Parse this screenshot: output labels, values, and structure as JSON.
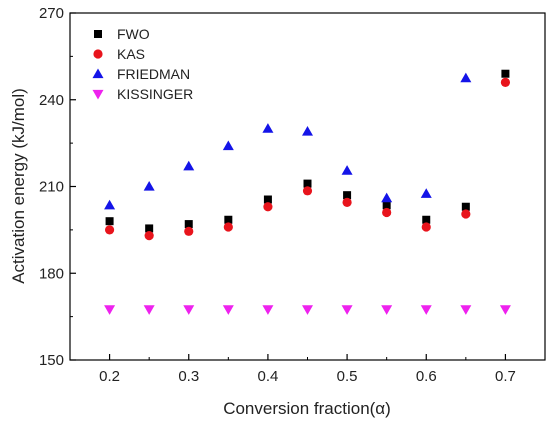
{
  "chart_data": {
    "type": "scatter",
    "xlabel": "Conversion fraction(α)",
    "ylabel": "Activation energy (kJ/mol)",
    "xlim": [
      0.15,
      0.75
    ],
    "ylim": [
      150,
      270
    ],
    "xticks": [
      0.2,
      0.3,
      0.4,
      0.5,
      0.6,
      0.7
    ],
    "xtick_labels": [
      "0.2",
      "0.3",
      "0.4",
      "0.5",
      "0.6",
      "0.7"
    ],
    "yticks": [
      150,
      180,
      210,
      240,
      270
    ],
    "ytick_labels": [
      "150",
      "180",
      "210",
      "240",
      "270"
    ],
    "grid": false,
    "legend_position": "top-left",
    "x": [
      0.2,
      0.25,
      0.3,
      0.35,
      0.4,
      0.45,
      0.5,
      0.55,
      0.6,
      0.65,
      0.7
    ],
    "series": [
      {
        "name": "FWO",
        "marker": "square",
        "color": "#000000",
        "x": [
          0.2,
          0.25,
          0.3,
          0.35,
          0.4,
          0.45,
          0.5,
          0.55,
          0.6,
          0.65,
          0.7
        ],
        "values": [
          198,
          195.5,
          197,
          198.5,
          205.5,
          211,
          207,
          203.5,
          198.5,
          203,
          249
        ]
      },
      {
        "name": "KAS",
        "marker": "circle",
        "color": "#e8141c",
        "x": [
          0.2,
          0.25,
          0.3,
          0.35,
          0.4,
          0.45,
          0.5,
          0.55,
          0.6,
          0.65,
          0.7
        ],
        "values": [
          195,
          193,
          194.5,
          196,
          203,
          208.5,
          204.5,
          201,
          196,
          200.5,
          246
        ]
      },
      {
        "name": "FRIEDMAN",
        "marker": "triangle-up",
        "color": "#1414e8",
        "x": [
          0.2,
          0.25,
          0.3,
          0.35,
          0.4,
          0.45,
          0.5,
          0.55,
          0.6,
          0.65
        ],
        "values": [
          203.5,
          210,
          217,
          224,
          230,
          229,
          215.5,
          206,
          207.5,
          247.5
        ]
      },
      {
        "name": "KISSINGER",
        "marker": "triangle-down",
        "color": "#ee22ee",
        "x": [
          0.2,
          0.25,
          0.3,
          0.35,
          0.4,
          0.45,
          0.5,
          0.55,
          0.6,
          0.65,
          0.7
        ],
        "values": [
          167.5,
          167.5,
          167.5,
          167.5,
          167.5,
          167.5,
          167.5,
          167.5,
          167.5,
          167.5,
          167.5
        ]
      }
    ]
  }
}
